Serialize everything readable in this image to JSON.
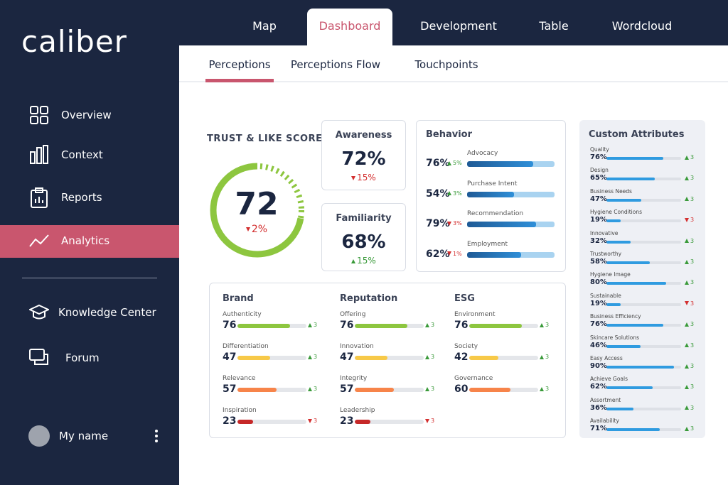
{
  "sidebar": {
    "logo": "caliber",
    "nav": [
      "Overview",
      "Context",
      "Reports",
      "Analytics",
      "Knowledge Center",
      "Forum"
    ],
    "active_nav": 3,
    "user": "My name"
  },
  "tabs": {
    "items": [
      "Map",
      "Dashboard",
      "Development",
      "Table",
      "Wordcloud"
    ],
    "active": 1
  },
  "subtabs": {
    "items": [
      "Perceptions",
      "Perceptions Flow",
      "Touchpoints"
    ],
    "active": 0
  },
  "trust": {
    "title": "TRUST & LIKE SCORE",
    "value": 72,
    "change": "2%",
    "direction": "down"
  },
  "kpis": [
    {
      "title": "Awareness",
      "value": "72%",
      "change": "15%",
      "direction": "down"
    },
    {
      "title": "Familiarity",
      "value": "68%",
      "change": "15%",
      "direction": "up"
    }
  ],
  "behavior": {
    "title": "Behavior",
    "items": [
      {
        "label": "Advocacy",
        "value": 76,
        "value_label": "76%",
        "change": "5%",
        "direction": "up"
      },
      {
        "label": "Purchase Intent",
        "value": 54,
        "value_label": "54%",
        "change": "3%",
        "direction": "up"
      },
      {
        "label": "Recommendation",
        "value": 79,
        "value_label": "79%",
        "change": "3%",
        "direction": "down"
      },
      {
        "label": "Employment",
        "value": 62,
        "value_label": "62%",
        "change": "1%",
        "direction": "down"
      }
    ]
  },
  "groups": [
    {
      "title": "Brand",
      "items": [
        {
          "label": "Authenticity",
          "value": 76,
          "change": "3",
          "direction": "up",
          "color": "#8dc63f"
        },
        {
          "label": "Differentiation",
          "value": 47,
          "change": "3",
          "direction": "up",
          "color": "#f7c948"
        },
        {
          "label": "Relevance",
          "value": 57,
          "change": "3",
          "direction": "up",
          "color": "#f7844a"
        },
        {
          "label": "Inspiration",
          "value": 23,
          "change": "3",
          "direction": "down",
          "color": "#c62828"
        }
      ]
    },
    {
      "title": "Reputation",
      "items": [
        {
          "label": "Offering",
          "value": 76,
          "change": "3",
          "direction": "up",
          "color": "#8dc63f"
        },
        {
          "label": "Innovation",
          "value": 47,
          "change": "3",
          "direction": "up",
          "color": "#f7c948"
        },
        {
          "label": "Integrity",
          "value": 57,
          "change": "3",
          "direction": "up",
          "color": "#f7844a"
        },
        {
          "label": "Leadership",
          "value": 23,
          "change": "3",
          "direction": "down",
          "color": "#c62828"
        }
      ]
    },
    {
      "title": "ESG",
      "items": [
        {
          "label": "Environment",
          "value": 76,
          "change": "3",
          "direction": "up",
          "color": "#8dc63f"
        },
        {
          "label": "Society",
          "value": 42,
          "change": "3",
          "direction": "up",
          "color": "#f7c948"
        },
        {
          "label": "Governance",
          "value": 60,
          "change": "3",
          "direction": "up",
          "color": "#f7844a"
        }
      ]
    }
  ],
  "custom": {
    "title": "Custom Attributes",
    "items": [
      {
        "label": "Quality",
        "value": 76,
        "value_label": "76%",
        "change": "3",
        "direction": "up"
      },
      {
        "label": "Design",
        "value": 65,
        "value_label": "65%",
        "change": "3",
        "direction": "up"
      },
      {
        "label": "Business Needs",
        "value": 47,
        "value_label": "47%",
        "change": "3",
        "direction": "up"
      },
      {
        "label": "Hygiene Conditions",
        "value": 19,
        "value_label": "19%",
        "change": "3",
        "direction": "down"
      },
      {
        "label": "Innovative",
        "value": 32,
        "value_label": "32%",
        "change": "3",
        "direction": "up"
      },
      {
        "label": "Trustworthy",
        "value": 58,
        "value_label": "58%",
        "change": "3",
        "direction": "up"
      },
      {
        "label": "Hygiene Image",
        "value": 80,
        "value_label": "80%",
        "change": "3",
        "direction": "up"
      },
      {
        "label": "Sustainable",
        "value": 19,
        "value_label": "19%",
        "change": "3",
        "direction": "down"
      },
      {
        "label": "Business Efficiency",
        "value": 76,
        "value_label": "76%",
        "change": "3",
        "direction": "up"
      },
      {
        "label": "Skincare Solutions",
        "value": 46,
        "value_label": "46%",
        "change": "3",
        "direction": "up"
      },
      {
        "label": "Easy Access",
        "value": 90,
        "value_label": "90%",
        "change": "3",
        "direction": "up"
      },
      {
        "label": "Achieve Goals",
        "value": 62,
        "value_label": "62%",
        "change": "3",
        "direction": "up"
      },
      {
        "label": "Assortment",
        "value": 36,
        "value_label": "36%",
        "change": "3",
        "direction": "up"
      },
      {
        "label": "Availability",
        "value": 71,
        "value_label": "71%",
        "change": "3",
        "direction": "up"
      }
    ]
  }
}
